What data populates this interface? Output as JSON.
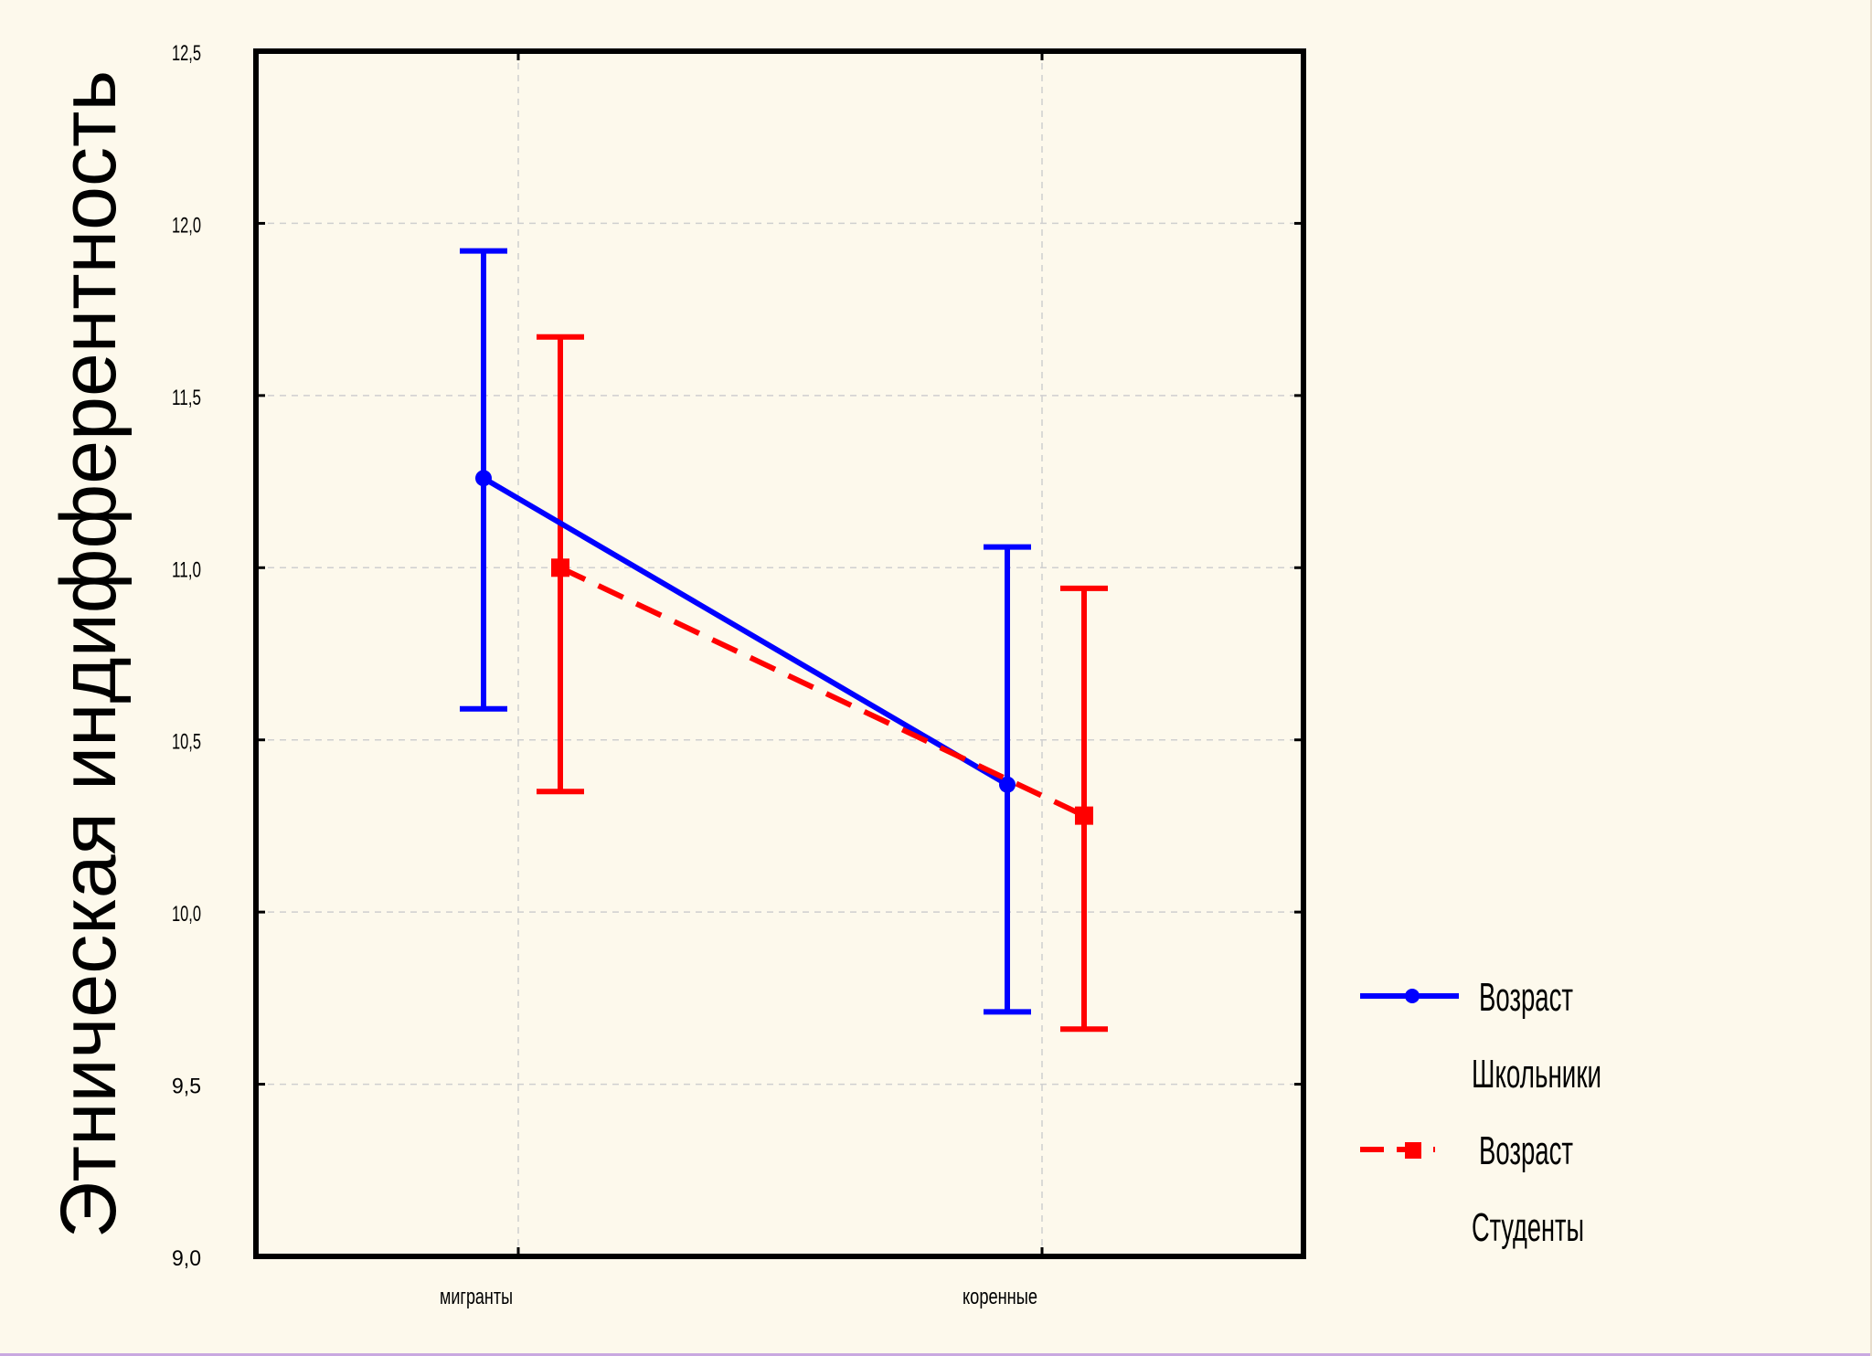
{
  "chart_data": {
    "type": "line",
    "ylabel": "Этническая индифферентность",
    "xlabel": "",
    "ylim": [
      9.0,
      12.5
    ],
    "y_ticks": [
      "9,0",
      "9,5",
      "10,0",
      "10,5",
      "11,0",
      "11,5",
      "12,0",
      "12,5"
    ],
    "y_tick_values": [
      9.0,
      9.5,
      10.0,
      10.5,
      11.0,
      11.5,
      12.0,
      12.5
    ],
    "categories": [
      "мигранты",
      "коренные"
    ],
    "grid": true,
    "legend_position": "right",
    "series": [
      {
        "name": "Школьники",
        "legend_title": "Возраст",
        "color": "#0000ff",
        "marker": "circle",
        "line_style": "solid",
        "values": [
          11.26,
          10.37
        ],
        "error_low": [
          10.59,
          9.71
        ],
        "error_high": [
          11.92,
          11.06
        ]
      },
      {
        "name": "Студенты",
        "legend_title": "Возраст",
        "color": "#ff0000",
        "marker": "square",
        "line_style": "dashed",
        "values": [
          11.0,
          10.28
        ],
        "error_low": [
          10.35,
          9.66
        ],
        "error_high": [
          11.67,
          10.94
        ]
      }
    ]
  }
}
